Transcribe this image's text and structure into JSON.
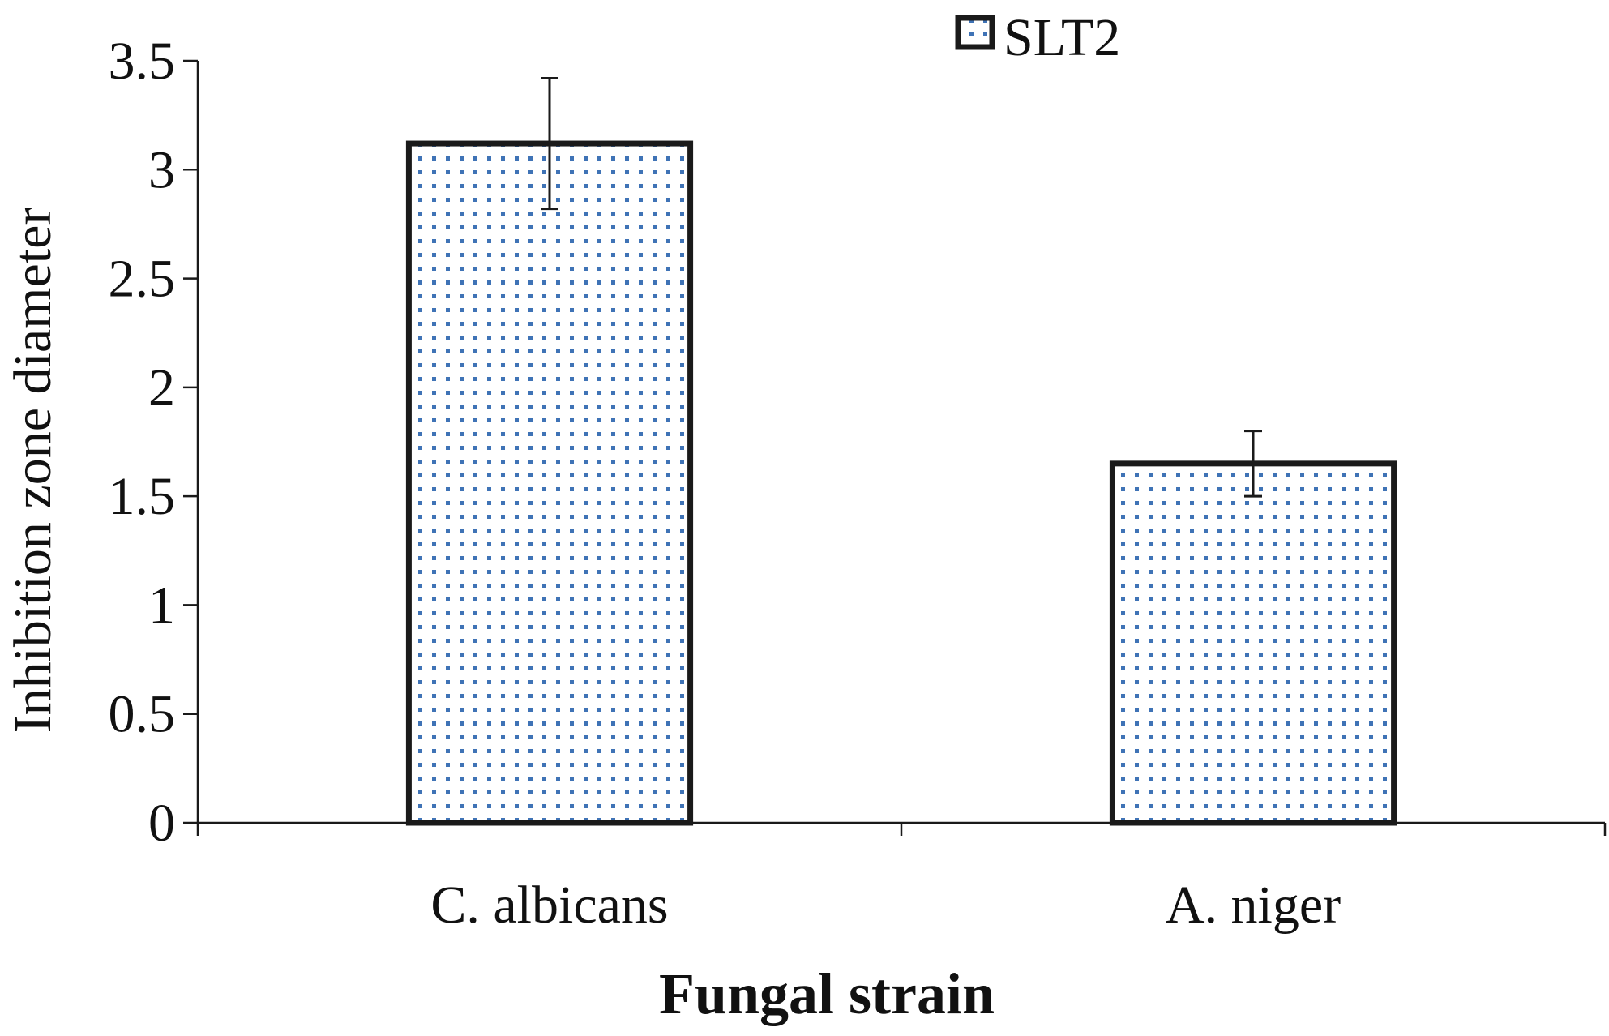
{
  "chart_data": {
    "type": "bar",
    "categories": [
      "C. albicans",
      "A. niger"
    ],
    "series": [
      {
        "name": "SLT2",
        "values": [
          3.12,
          1.65
        ],
        "errors": [
          0.3,
          0.15
        ],
        "fill_color": "#3f73b6",
        "edge_color": "#1a1a1a"
      }
    ],
    "xlabel": "Fungal strain",
    "ylabel": "Inhibition zone diameter",
    "ylim": [
      0,
      3.5
    ],
    "yticks": [
      "0",
      "0.5",
      "1",
      "1.5",
      "2",
      "2.5",
      "3",
      "3.5"
    ],
    "grid": false,
    "legend_position": "top-center"
  }
}
